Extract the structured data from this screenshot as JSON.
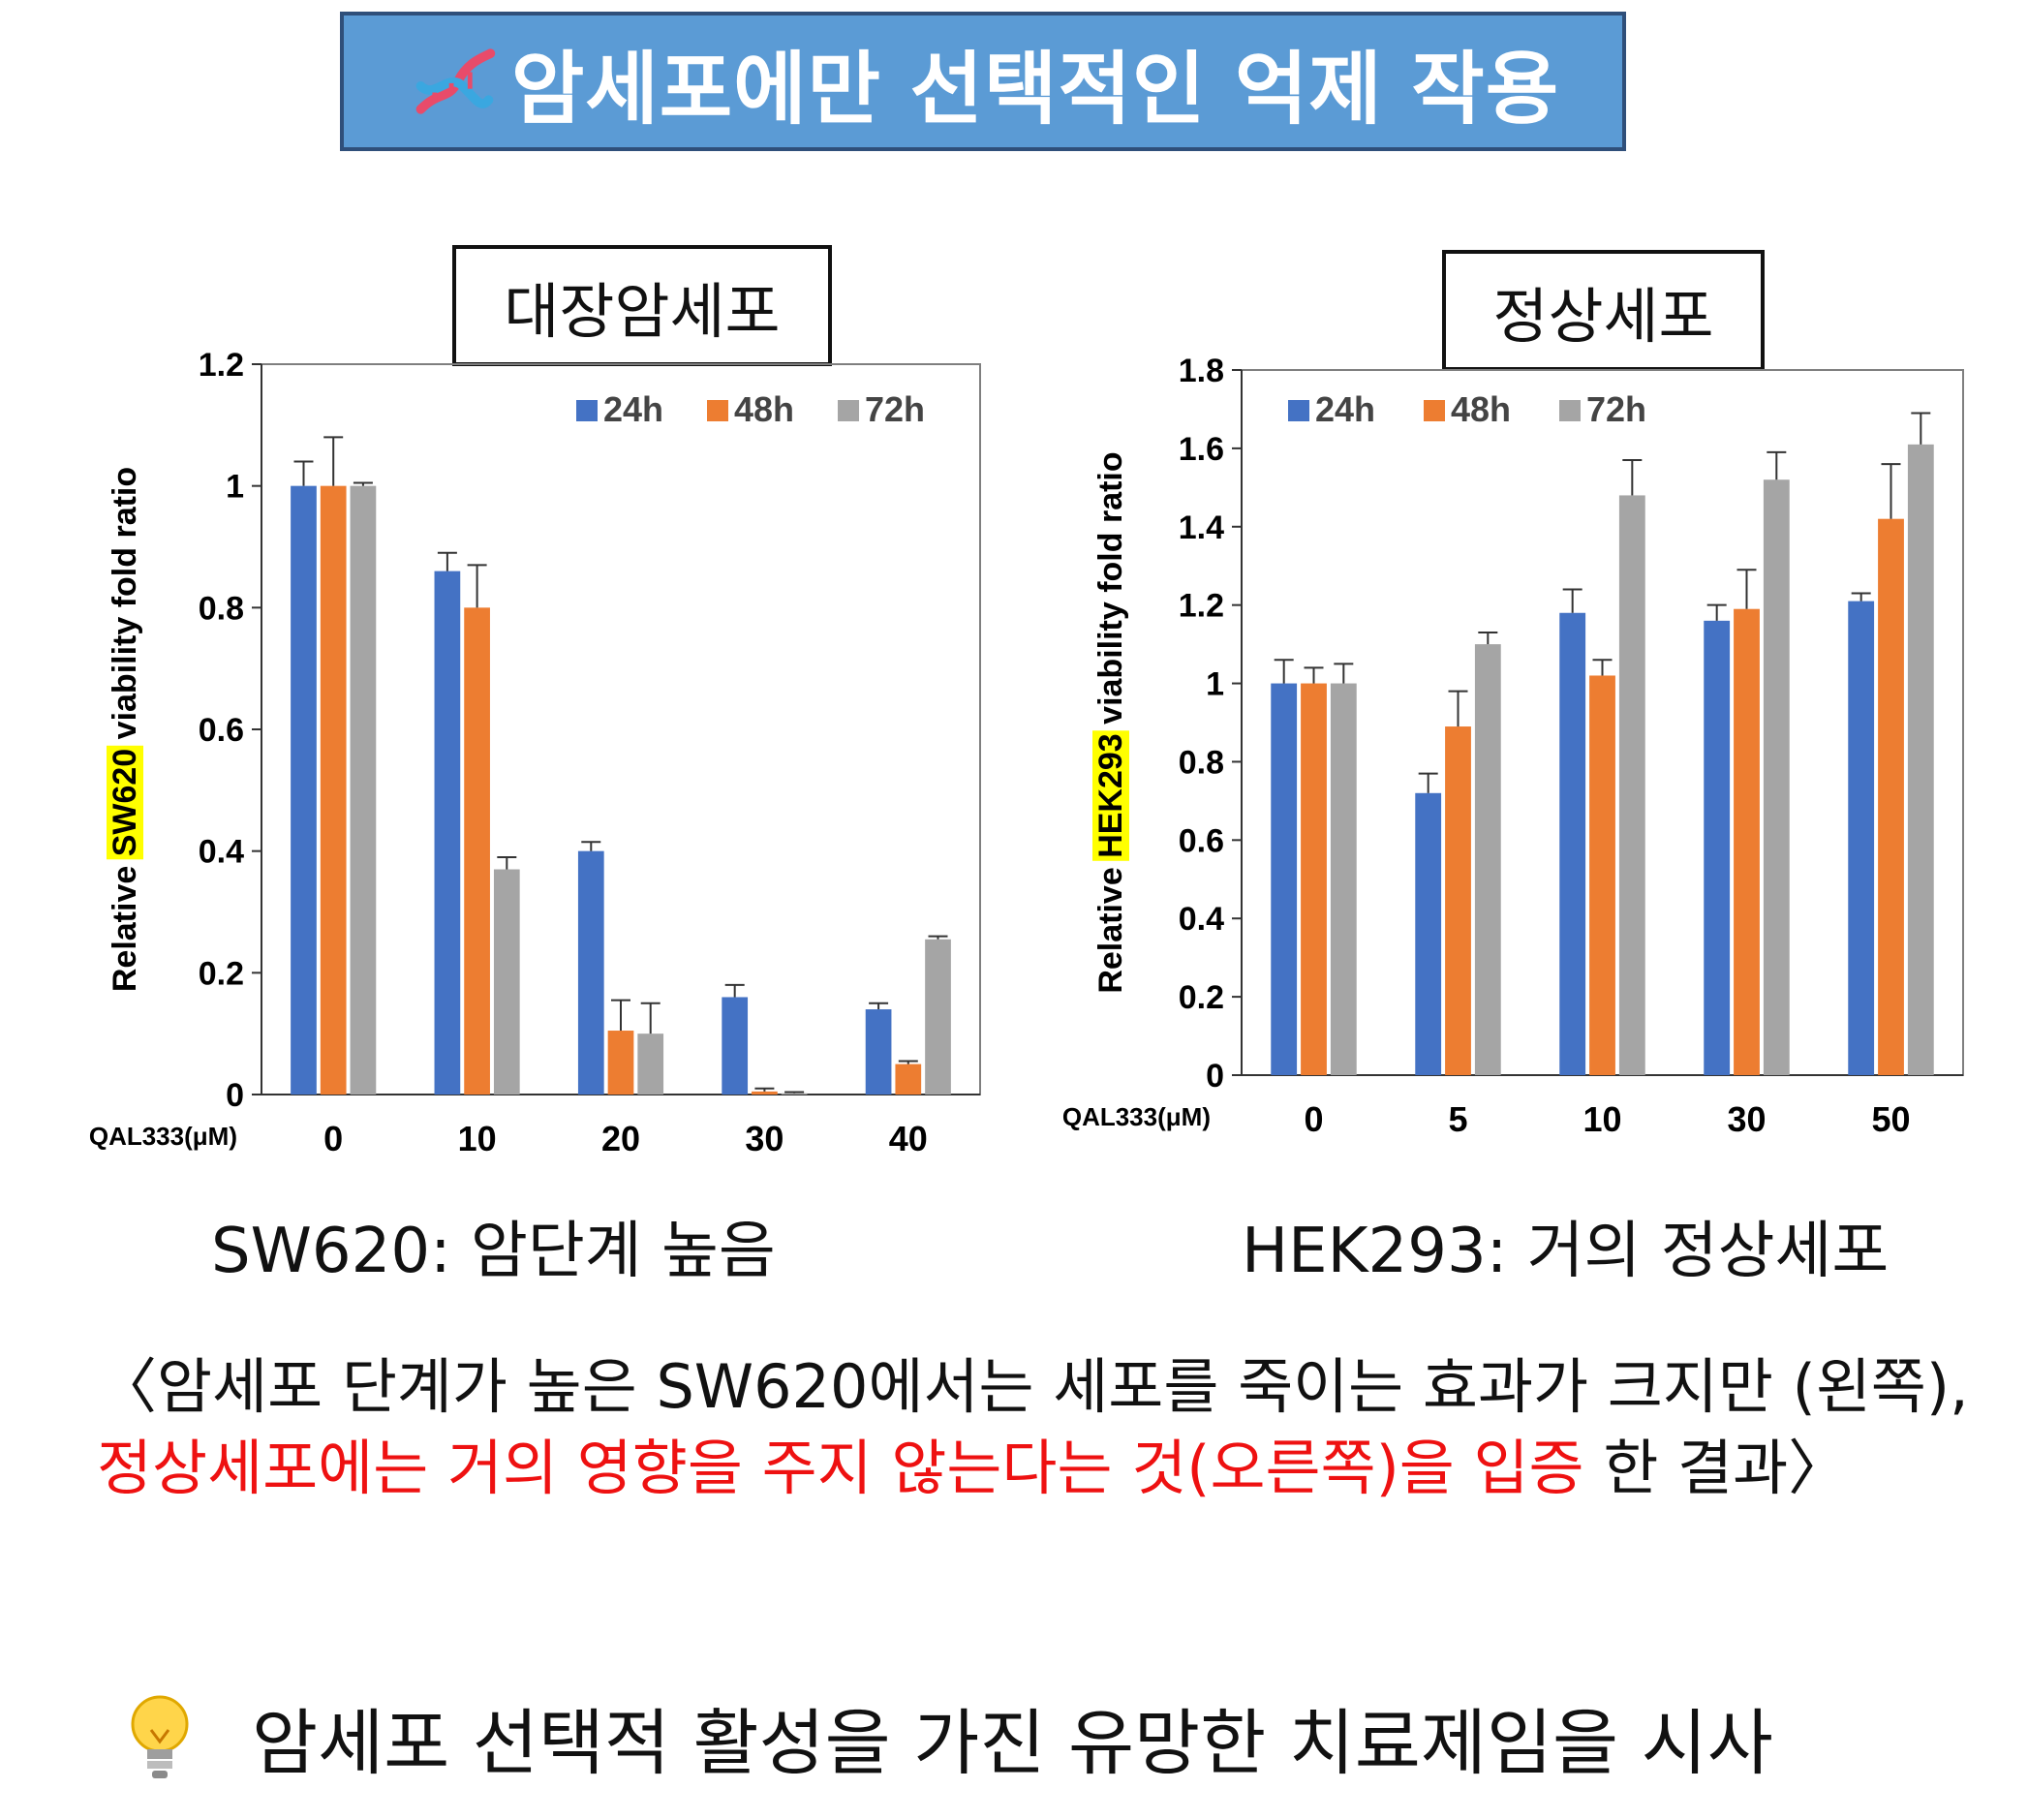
{
  "banner": {
    "title": "암세포에만 선택적인 억제 작용",
    "icon": "dna-icon"
  },
  "colors": {
    "s24": "#4472c4",
    "s48": "#ed7d31",
    "s72": "#a5a5a5",
    "highlight": "#ffff00",
    "banner": "#5b9bd5",
    "emphasis": "#ee1111"
  },
  "chart_data": [
    {
      "type": "bar",
      "panel_label": "대장암세포",
      "x_axis_title": "QAL333(μM)",
      "categories": [
        "0",
        "10",
        "20",
        "30",
        "40"
      ],
      "y_label_parts": [
        "Relative ",
        "SW620",
        " viability fold ratio"
      ],
      "ylim": [
        0,
        1.2
      ],
      "yticks": [
        "0",
        "0.2",
        "0.4",
        "0.6",
        "0.8",
        "1",
        "1.2"
      ],
      "legend": [
        "24h",
        "48h",
        "72h"
      ],
      "series": [
        {
          "name": "24h",
          "values": [
            1.0,
            0.86,
            0.4,
            0.16,
            0.14
          ],
          "errors": [
            0.04,
            0.03,
            0.015,
            0.02,
            0.01
          ]
        },
        {
          "name": "48h",
          "values": [
            1.0,
            0.8,
            0.105,
            0.005,
            0.05
          ],
          "errors": [
            0.08,
            0.07,
            0.05,
            0.005,
            0.005
          ]
        },
        {
          "name": "72h",
          "values": [
            1.0,
            0.37,
            0.1,
            0.002,
            0.255
          ],
          "errors": [
            0.005,
            0.02,
            0.05,
            0.002,
            0.005
          ]
        }
      ],
      "caption": "SW620: 암단계 높음"
    },
    {
      "type": "bar",
      "panel_label": "정상세포",
      "x_axis_title": "QAL333(μM)",
      "categories": [
        "0",
        "5",
        "10",
        "30",
        "50"
      ],
      "y_label_parts": [
        "Relative ",
        "HEK293",
        " viability fold ratio"
      ],
      "ylim": [
        0,
        1.8
      ],
      "yticks": [
        "0",
        "0.2",
        "0.4",
        "0.6",
        "0.8",
        "1",
        "1.2",
        "1.4",
        "1.6",
        "1.8"
      ],
      "legend": [
        "24h",
        "48h",
        "72h"
      ],
      "series": [
        {
          "name": "24h",
          "values": [
            1.0,
            0.72,
            1.18,
            1.16,
            1.21
          ],
          "errors": [
            0.06,
            0.05,
            0.06,
            0.04,
            0.02
          ]
        },
        {
          "name": "48h",
          "values": [
            1.0,
            0.89,
            1.02,
            1.19,
            1.42
          ],
          "errors": [
            0.04,
            0.09,
            0.04,
            0.1,
            0.14
          ]
        },
        {
          "name": "72h",
          "values": [
            1.0,
            1.1,
            1.48,
            1.52,
            1.61
          ],
          "errors": [
            0.05,
            0.03,
            0.09,
            0.07,
            0.08
          ]
        }
      ],
      "caption": "HEK293: 거의 정상세포"
    }
  ],
  "summary": {
    "part1": "〈암세포 단계가 높은 SW620에서는 세포를 죽이는 효과가 크지만 (왼쪽), ",
    "part2_red": "정상세포에는 거의 영향을 주지 않는다는 것(오른쪽)을 입증",
    "part3": "한 결과〉"
  },
  "tip": {
    "icon": "lightbulb-icon",
    "text": "암세포 선택적 활성을 가진 유망한 치료제임을 시사"
  }
}
